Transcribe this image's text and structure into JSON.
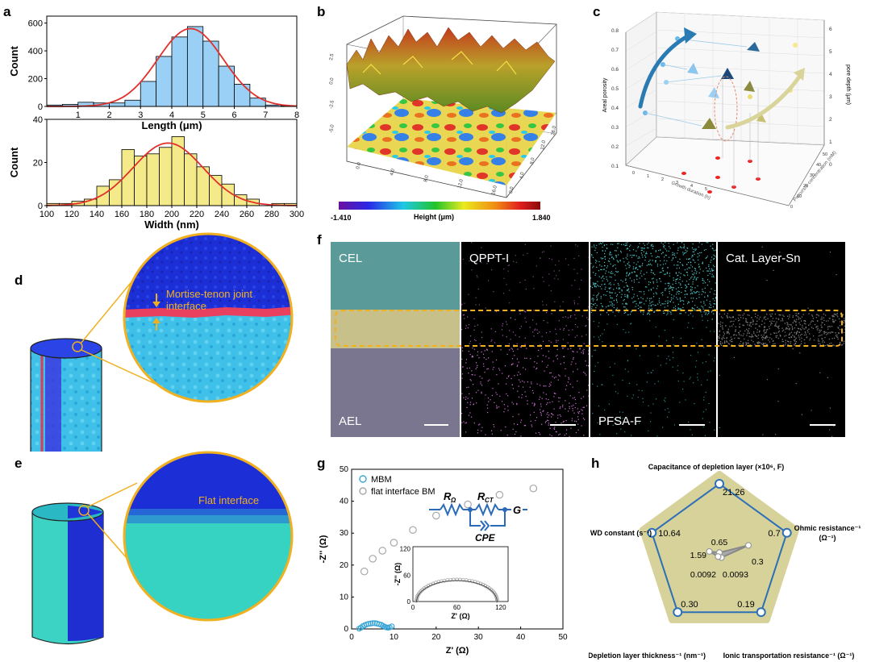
{
  "panels": {
    "a": "a",
    "b": "b",
    "c": "c",
    "d": "d",
    "e": "e",
    "f": "f",
    "g": "g",
    "h": "h"
  },
  "chart_data": [
    {
      "id": "a-length",
      "type": "bar",
      "xlabel": "Length (μm)",
      "ylabel": "Count",
      "xlim": [
        0,
        8
      ],
      "ylim": [
        0,
        650
      ],
      "xticks": [
        1,
        2,
        3,
        4,
        5,
        6,
        7,
        8
      ],
      "yticks": [
        0,
        200,
        400,
        600
      ],
      "bin_width": 0.5,
      "bins": [
        0.25,
        0.75,
        1.25,
        1.75,
        2.25,
        2.75,
        3.25,
        3.75,
        4.25,
        4.75,
        5.25,
        5.75,
        6.25,
        6.75,
        7.25,
        7.75
      ],
      "values": [
        10,
        15,
        30,
        25,
        25,
        45,
        180,
        360,
        500,
        575,
        470,
        290,
        160,
        60,
        10,
        5
      ],
      "fit": {
        "type": "gaussian",
        "mean": 4.6,
        "sd": 1.05,
        "peak": 560
      },
      "bar_color": "#9ad0f5",
      "fit_color": "#e0302c"
    },
    {
      "id": "a-width",
      "type": "bar",
      "xlabel": "Width (nm)",
      "ylabel": "Count",
      "xlim": [
        100,
        300
      ],
      "ylim": [
        0,
        40
      ],
      "xticks": [
        100,
        120,
        140,
        160,
        180,
        200,
        220,
        240,
        260,
        280,
        300
      ],
      "yticks": [
        0,
        20,
        40
      ],
      "bin_width": 10,
      "bins": [
        105,
        115,
        125,
        135,
        145,
        155,
        165,
        175,
        185,
        195,
        205,
        215,
        225,
        235,
        245,
        255,
        265,
        275,
        285,
        295
      ],
      "values": [
        1,
        1,
        2,
        3,
        9,
        12,
        26,
        23,
        24,
        27,
        32,
        24,
        18,
        14,
        10,
        5,
        3,
        0,
        1,
        1
      ],
      "fit": {
        "type": "gaussian",
        "mean": 197,
        "sd": 28,
        "peak": 29
      },
      "bar_color": "#f4ea8a",
      "fit_color": "#e0302c"
    },
    {
      "id": "b-surface",
      "type": "heatmap",
      "colorbar_min": "-1.410",
      "colorbar_max": "1.840",
      "colorbar_label": "Height (μm)"
    },
    {
      "id": "c-3d",
      "type": "scatter",
      "left_ticks": [
        "0.1",
        "0.2",
        "0.3",
        "0.4",
        "0.5",
        "0.6",
        "0.7",
        "0.8"
      ],
      "right_ticks": [
        "0",
        "1",
        "2",
        "3",
        "4",
        "5",
        "6"
      ],
      "left_axis_label": "Areal porosity",
      "right_axis_label": "pore depth (μm)",
      "x_axis_label": "Growth duration (h)",
      "y_axis_label": "Precursor concentration (mM)"
    },
    {
      "id": "g-nyquist",
      "type": "scatter",
      "xlabel": "Z' (Ω)",
      "ylabel": "-Z'' (Ω)",
      "xlim": [
        0,
        50
      ],
      "ylim": [
        0,
        50
      ],
      "xticks": [
        0,
        10,
        20,
        30,
        40,
        50
      ],
      "yticks": [
        0,
        10,
        20,
        30,
        40,
        50
      ],
      "legend": [
        "MBM",
        "flat interface BM"
      ],
      "legend_position": "top-left",
      "series": [
        {
          "name": "MBM",
          "color": "#3aa6d6",
          "x": [
            1.8,
            2.2,
            2.6,
            3.0,
            3.5,
            4.0,
            4.5,
            5.0,
            5.5,
            6.0,
            6.5,
            7.0,
            7.4,
            7.8,
            8.2,
            8.6,
            9.0,
            9.5
          ],
          "y": [
            0.1,
            0.4,
            0.8,
            1.1,
            1.4,
            1.6,
            1.7,
            1.8,
            1.8,
            1.7,
            1.5,
            1.3,
            1.0,
            0.7,
            0.5,
            0.4,
            0.5,
            0.8
          ]
        },
        {
          "name": "flat interface BM",
          "color": "#a8a8a8",
          "x": [
            3.0,
            5.0,
            7.3,
            10.0,
            14.5,
            20.0,
            27.5,
            35.0,
            43.0
          ],
          "y": [
            18.0,
            22.0,
            24.5,
            27.0,
            31.0,
            35.5,
            39.0,
            42.0,
            44.0
          ]
        }
      ],
      "inset": {
        "xlabel": "Z' (Ω)",
        "ylabel": "-Z'' (Ω)",
        "xlim": [
          0,
          130
        ],
        "ylim": [
          0,
          125
        ],
        "xticks": [
          0,
          60,
          120
        ],
        "yticks": [
          0,
          60,
          120
        ],
        "circuit_labels": [
          "R",
          "Ω",
          "R",
          "CT",
          "G",
          "CPE"
        ]
      }
    },
    {
      "id": "h-radar",
      "type": "radar",
      "axes": [
        "Capacitance of depletion layer (×10⁶, F)",
        "Ohmic resistance⁻¹ (Ω⁻¹)",
        "Ionic transportation resistance⁻¹ (Ω⁻¹)",
        "Depletion layer thickness⁻¹ (nm⁻¹)",
        "WD constant (s⁻¹)"
      ],
      "series": [
        {
          "name": "MBM",
          "values": [
            21.26,
            0.7,
            0.19,
            0.3,
            10.64
          ],
          "labels": [
            "21.26",
            "0.7",
            "0.19",
            "0.30",
            "10.64"
          ],
          "normalized": [
            1,
            1,
            1,
            1,
            1
          ]
        },
        {
          "name": "flat interface BM",
          "values": [
            0.65,
            0.3,
            0.0093,
            0.0092,
            1.59
          ],
          "labels": [
            "0.65",
            "0.3",
            "0.0093",
            "0.0092",
            "1.59"
          ],
          "normalized": [
            0.031,
            0.43,
            0.049,
            0.031,
            0.149
          ]
        }
      ],
      "fill_color": "#d6d29a",
      "line_color": "#2d6fb6"
    }
  ],
  "panel_d": {
    "callout_title": "Mortise-tenon joint",
    "callout_sub": "interface"
  },
  "panel_e": {
    "callout_title": "Flat interface"
  },
  "panel_f": {
    "labels": [
      "CEL",
      "QPPT-I",
      "PFSA-F",
      "Cat. Layer-Sn",
      "AEL"
    ]
  }
}
